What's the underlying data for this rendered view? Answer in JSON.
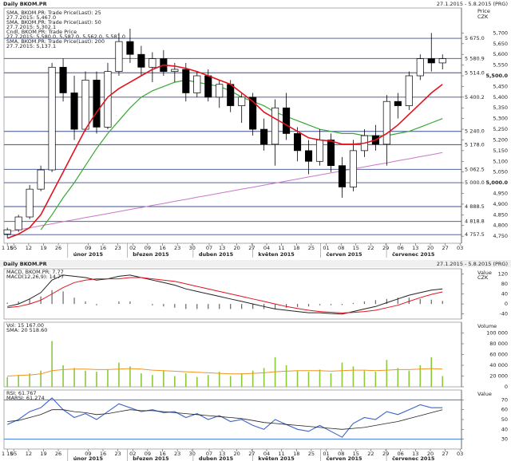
{
  "chart_data": [
    {
      "type": "candlestick",
      "title": "Daily BKOM.PR",
      "subtitle": "27.1.2015 - 5.8.2015 (PRG)",
      "y_label": "Price",
      "y_unit": "CZK",
      "categories": [
        null,
        null,
        null,
        null,
        null,
        null,
        null,
        null,
        null,
        null,
        null,
        null,
        null,
        null,
        null,
        null,
        null,
        null,
        null,
        null,
        null,
        null,
        null,
        null,
        null,
        null,
        null,
        null,
        null,
        null,
        null,
        null,
        null,
        null,
        null,
        null,
        null,
        null,
        null,
        null
      ],
      "ohlc": {
        "name": "Cndl, BKOM.PR: Trade Price",
        "last": "27.7.2015: 5,580.0, 5,587.0, 5,562.0, 5,581.0",
        "up_color": "#ffffff",
        "down_color": "#000000",
        "open": [
          4760,
          4780,
          4840,
          4970,
          5060,
          5540,
          5420,
          5250,
          5480,
          5260,
          5520,
          5660,
          5600,
          5540,
          5580,
          5520,
          5530,
          5420,
          5500,
          5400,
          5460,
          5360,
          5400,
          5250,
          5180,
          5350,
          5230,
          5150,
          5100,
          5200,
          5080,
          4980,
          5150,
          5220,
          5180,
          5380,
          5360,
          5500,
          5580,
          5560
        ],
        "high": [
          4790,
          4850,
          4990,
          5080,
          5560,
          5580,
          5500,
          5520,
          5520,
          5560,
          5700,
          5720,
          5640,
          5610,
          5620,
          5560,
          5560,
          5520,
          5530,
          5480,
          5480,
          5420,
          5420,
          5300,
          5390,
          5420,
          5260,
          5200,
          5250,
          5230,
          5120,
          5200,
          5250,
          5270,
          5410,
          5420,
          5520,
          5600,
          5700,
          5600
        ],
        "low": [
          4740,
          4770,
          4830,
          4960,
          5050,
          5380,
          5200,
          5240,
          5230,
          5250,
          5500,
          5560,
          5500,
          5470,
          5500,
          5470,
          5380,
          5400,
          5380,
          5350,
          5330,
          5280,
          5220,
          5150,
          5080,
          5200,
          5100,
          5040,
          5080,
          5050,
          4930,
          4960,
          5120,
          5150,
          5080,
          5300,
          5340,
          5480,
          5520,
          5530
        ],
        "close": [
          4780,
          4840,
          4970,
          5060,
          5540,
          5420,
          5250,
          5480,
          5260,
          5520,
          5660,
          5600,
          5540,
          5580,
          5520,
          5530,
          5420,
          5500,
          5400,
          5460,
          5360,
          5400,
          5250,
          5180,
          5350,
          5230,
          5150,
          5100,
          5200,
          5080,
          4980,
          5150,
          5220,
          5180,
          5380,
          5360,
          5500,
          5580,
          5560,
          5580
        ]
      },
      "series": [
        {
          "name": "SMA, BKOM.PR: Trade Price(Last): 25",
          "last": "27.7.2015: 5,467.0",
          "color": "#e0141e",
          "values": [
            4740,
            4760,
            4790,
            4850,
            4950,
            5050,
            5150,
            5250,
            5330,
            5400,
            5440,
            5470,
            5500,
            5530,
            5550,
            5545,
            5535,
            5520,
            5500,
            5480,
            5460,
            5420,
            5380,
            5330,
            5300,
            5270,
            5240,
            5210,
            5200,
            5195,
            5180,
            5180,
            5185,
            5200,
            5230,
            5270,
            5320,
            5370,
            5420,
            5460
          ]
        },
        {
          "name": "SMA, BKOM.PR: Trade Price(Last): 50",
          "last": "27.7.2015: 5,302.1",
          "color": "#3aa832",
          "values": [
            null,
            null,
            null,
            4780,
            4850,
            4930,
            5000,
            5080,
            5160,
            5230,
            5290,
            5350,
            5400,
            5430,
            5450,
            5470,
            5480,
            5470,
            5460,
            5450,
            5430,
            5400,
            5380,
            5360,
            5330,
            5310,
            5290,
            5270,
            5250,
            5240,
            5230,
            5230,
            5220,
            5220,
            5220,
            5230,
            5240,
            5260,
            5280,
            5300
          ]
        },
        {
          "name": "SMA, BKOM.PR: Trade Price(Last): 200",
          "last": "27.7.2015: 5,137.1",
          "color": "#c878c8",
          "values": [
            4770,
            4780,
            4789,
            4799,
            4808,
            4818,
            4827,
            4837,
            4846,
            4856,
            4865,
            4875,
            4884,
            4894,
            4903,
            4913,
            4922,
            4932,
            4941,
            4951,
            4960,
            4970,
            4979,
            4989,
            4998,
            5008,
            5017,
            5027,
            5036,
            5046,
            5055,
            5065,
            5074,
            5084,
            5093,
            5103,
            5112,
            5122,
            5131,
            5141
          ]
        }
      ],
      "ylim": [
        4717,
        5817
      ],
      "yticks": [
        {
          "value": 4750,
          "label": "4,750"
        },
        {
          "value": 4800,
          "label": "4,800"
        },
        {
          "value": 4850,
          "label": "4,850"
        },
        {
          "value": 4900,
          "label": "4,900"
        },
        {
          "value": 4950,
          "label": "4,950"
        },
        {
          "value": 5000,
          "label": "5,000.0"
        },
        {
          "value": 5050,
          "label": "5,050"
        },
        {
          "value": 5100,
          "label": "5,100"
        },
        {
          "value": 5150,
          "label": "5,150"
        },
        {
          "value": 5200,
          "label": "5,200"
        },
        {
          "value": 5250,
          "label": "5,250"
        },
        {
          "value": 5300,
          "label": "5,300"
        },
        {
          "value": 5350,
          "label": "5,350"
        },
        {
          "value": 5400,
          "label": "5,400"
        },
        {
          "value": 5450,
          "label": "5,450"
        },
        {
          "value": 5500,
          "label": "5,500.0"
        },
        {
          "value": 5550,
          "label": "5,550"
        },
        {
          "value": 5600,
          "label": "5,600"
        },
        {
          "value": 5650,
          "label": "5,650"
        },
        {
          "value": 5700,
          "label": "5,700"
        }
      ],
      "levels": [
        {
          "value": 5675,
          "label": "5 675.0"
        },
        {
          "value": 5580.9,
          "label": "5 580.9"
        },
        {
          "value": 5514,
          "label": "5 514.0"
        },
        {
          "value": 5400.2,
          "label": "5 400.2"
        },
        {
          "value": 5240,
          "label": "5 240.0"
        },
        {
          "value": 5178,
          "label": "5 178.0"
        },
        {
          "value": 5062.5,
          "label": "5 062.5"
        },
        {
          "value": 5000,
          "label": "5 000.0"
        },
        {
          "value": 4888.5,
          "label": "4 888.5"
        },
        {
          "value": 4818.8,
          "label": "4 818.8"
        },
        {
          "value": 4757.5,
          "label": "4 757.5"
        }
      ],
      "level_color": "#3c4f8c",
      "xlim": [
        -0.3,
        40.7
      ],
      "xticks": [
        {
          "value": 0,
          "label": "1 15"
        },
        {
          "value": 0.57,
          "label": "05"
        },
        {
          "value": 1.91,
          "label": "12"
        },
        {
          "value": 3.24,
          "label": "19"
        },
        {
          "value": 4.57,
          "label": "26"
        },
        {
          "value": 7.24,
          "label": "09"
        },
        {
          "value": 8.57,
          "label": "16"
        },
        {
          "value": 9.91,
          "label": "23"
        },
        {
          "value": 11.24,
          "label": "02"
        },
        {
          "value": 12.57,
          "label": "09"
        },
        {
          "value": 13.91,
          "label": "16"
        },
        {
          "value": 15.24,
          "label": "23"
        },
        {
          "value": 16.57,
          "label": "30"
        },
        {
          "value": 18.09,
          "label": "07"
        },
        {
          "value": 19.24,
          "label": "13"
        },
        {
          "value": 20.57,
          "label": "20"
        },
        {
          "value": 21.91,
          "label": "27"
        },
        {
          "value": 23.24,
          "label": "04"
        },
        {
          "value": 24.57,
          "label": "11"
        },
        {
          "value": 25.91,
          "label": "18"
        },
        {
          "value": 27.24,
          "label": "25"
        },
        {
          "value": 28.57,
          "label": "01"
        },
        {
          "value": 29.91,
          "label": "08"
        },
        {
          "value": 31.24,
          "label": "15"
        },
        {
          "value": 32.57,
          "label": "22"
        },
        {
          "value": 33.91,
          "label": "29"
        },
        {
          "value": 35.24,
          "label": "06"
        },
        {
          "value": 36.57,
          "label": "13"
        },
        {
          "value": 37.91,
          "label": "20"
        },
        {
          "value": 39.24,
          "label": "27"
        },
        {
          "value": 40.57,
          "label": "03"
        }
      ],
      "months": [
        {
          "value": 5.91,
          "label": "únor 2015"
        },
        {
          "value": 11.24,
          "label": "březen 2015"
        },
        {
          "value": 17.15,
          "label": "duben 2015"
        },
        {
          "value": 22.48,
          "label": "květen 2015"
        },
        {
          "value": 28.57,
          "label": "červen 2015"
        },
        {
          "value": 34.48,
          "label": "červenec 2015"
        }
      ]
    },
    {
      "type": "macd",
      "title": "Daily BKOM.PR",
      "subtitle": "27.1.2015 - 5.8.2015 (PRG)",
      "y_label": "Value",
      "y_unit": "CZK",
      "series": [
        {
          "name": "MACD, BKOM.PR: 7.77",
          "color": "#222222",
          "values": [
            -10,
            0,
            20,
            45,
            95,
            115,
            110,
            105,
            95,
            100,
            110,
            115,
            105,
            95,
            85,
            75,
            60,
            50,
            40,
            30,
            20,
            10,
            0,
            -10,
            -20,
            -25,
            -30,
            -35,
            -35,
            -38,
            -40,
            -30,
            -20,
            -10,
            5,
            20,
            35,
            45,
            55,
            60
          ]
        },
        {
          "name": "MACD(12,26,9): 14.77",
          "color": "#e0141e",
          "values": [
            -15,
            -10,
            0,
            15,
            40,
            65,
            85,
            95,
            100,
            100,
            100,
            105,
            105,
            100,
            95,
            90,
            80,
            70,
            60,
            50,
            40,
            30,
            20,
            10,
            0,
            -10,
            -18,
            -25,
            -30,
            -33,
            -36,
            -34,
            -30,
            -25,
            -15,
            -5,
            10,
            25,
            38,
            48
          ]
        }
      ],
      "histogram": {
        "color": "#666666",
        "values": [
          5,
          10,
          20,
          30,
          55,
          50,
          25,
          10,
          -5,
          0,
          10,
          10,
          0,
          -5,
          -10,
          -15,
          -20,
          -20,
          -20,
          -20,
          -20,
          -20,
          -20,
          -20,
          -20,
          -15,
          -12,
          -10,
          -5,
          -5,
          -4,
          4,
          10,
          15,
          20,
          25,
          25,
          20,
          17,
          12
        ]
      },
      "ylim": [
        -60,
        140
      ],
      "yticks": [
        -40,
        0,
        40,
        80,
        120
      ]
    },
    {
      "type": "volume",
      "series": [
        {
          "name": "Vol: 15 167.00",
          "color": "#8cc83c",
          "values": [
            18000,
            22000,
            25000,
            30000,
            85000,
            40000,
            35000,
            30000,
            28000,
            32000,
            45000,
            38000,
            25000,
            22000,
            30000,
            20000,
            25000,
            18000,
            22000,
            28000,
            20000,
            25000,
            30000,
            35000,
            55000,
            40000,
            30000,
            28000,
            32000,
            25000,
            45000,
            38000,
            30000,
            28000,
            50000,
            35000,
            30000,
            40000,
            55000,
            20000
          ]
        },
        {
          "name": "SMA: 20 518.60",
          "color": "#f0961e",
          "values": [
            20000,
            21000,
            22000,
            24000,
            30000,
            32000,
            33000,
            33000,
            32000,
            32000,
            33000,
            34000,
            33000,
            31000,
            30000,
            29000,
            28000,
            27000,
            26000,
            25000,
            24000,
            24000,
            25000,
            26000,
            28000,
            29000,
            30000,
            30000,
            30000,
            29000,
            30000,
            31000,
            31000,
            30000,
            31000,
            32000,
            32000,
            33000,
            34000,
            33000
          ]
        }
      ],
      "y_label": "Volume",
      "ylim": [
        0,
        120000
      ],
      "yticks": [
        0,
        {
          "value": 20000,
          "label": "20 000"
        },
        {
          "value": 40000,
          "label": "40 000"
        },
        {
          "value": 60000,
          "label": "60 000"
        },
        {
          "value": 80000,
          "label": "80 000"
        },
        {
          "value": 100000,
          "label": "100 000"
        }
      ]
    },
    {
      "type": "rsi",
      "series": [
        {
          "name": "RSI: 61.767",
          "color": "#3c64c8",
          "values": [
            45,
            50,
            58,
            62,
            72,
            60,
            52,
            56,
            50,
            58,
            66,
            62,
            58,
            60,
            57,
            58,
            52,
            56,
            50,
            54,
            48,
            50,
            44,
            40,
            50,
            45,
            40,
            38,
            44,
            38,
            32,
            46,
            52,
            50,
            58,
            55,
            60,
            65,
            62,
            62
          ]
        },
        {
          "name": "MARSI: 61.274",
          "color": "#222222",
          "values": [
            48,
            49,
            52,
            55,
            60,
            60,
            58,
            57,
            55,
            56,
            58,
            60,
            59,
            59,
            58,
            57,
            56,
            55,
            54,
            53,
            52,
            51,
            49,
            47,
            46,
            45,
            44,
            43,
            42,
            41,
            40,
            41,
            42,
            44,
            46,
            48,
            51,
            54,
            57,
            60
          ]
        }
      ],
      "y_label": "Value",
      "ylim": [
        20,
        80
      ],
      "yticks": [
        30,
        40,
        50,
        60,
        70
      ],
      "levels": [
        70,
        30
      ],
      "level_color": "#3c78dc"
    }
  ]
}
